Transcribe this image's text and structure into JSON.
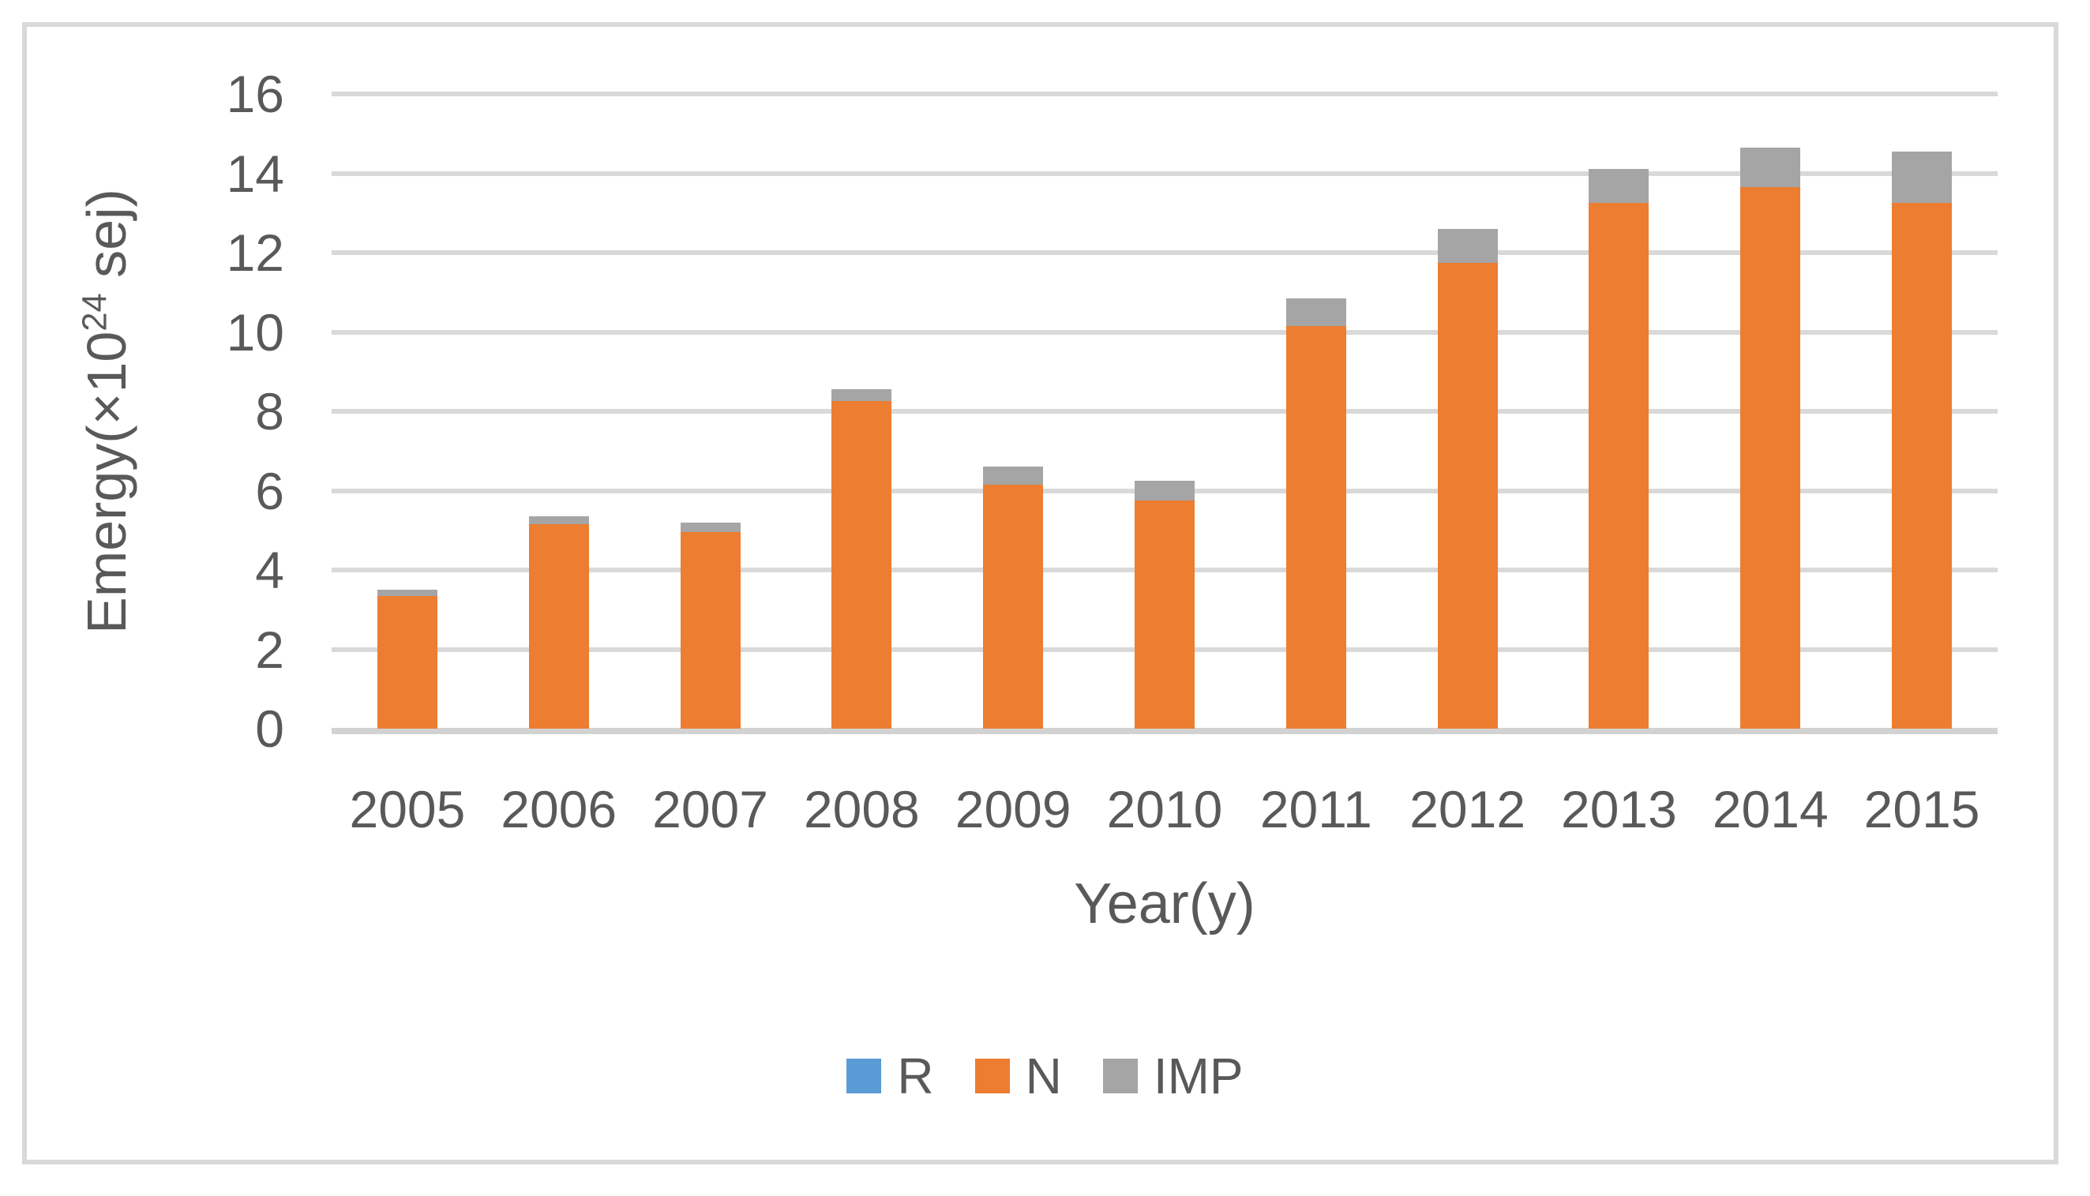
{
  "chart_data": {
    "type": "bar",
    "stacked": true,
    "title": "",
    "xlabel": "Year(y)",
    "ylabel": "Emergy(×10^24 sej)",
    "ylabel_parts": {
      "prefix": "Emergy(×10",
      "sup": "24",
      "suffix": " sej)"
    },
    "categories": [
      "2005",
      "2006",
      "2007",
      "2008",
      "2009",
      "2010",
      "2011",
      "2012",
      "2013",
      "2014",
      "2015"
    ],
    "series": [
      {
        "name": "R",
        "color": "#5B9BD5",
        "values": [
          0,
          0,
          0,
          0,
          0,
          0,
          0,
          0,
          0,
          0,
          0
        ]
      },
      {
        "name": "N",
        "color": "#ED7D31",
        "values": [
          3.35,
          5.15,
          4.95,
          8.25,
          6.15,
          5.75,
          10.15,
          11.75,
          13.25,
          13.65,
          13.25
        ]
      },
      {
        "name": "IMP",
        "color": "#A5A5A5",
        "values": [
          0.15,
          0.2,
          0.25,
          0.3,
          0.45,
          0.5,
          0.7,
          0.85,
          0.85,
          1.0,
          1.3
        ]
      }
    ],
    "stack_totals": [
      3.5,
      5.35,
      5.2,
      8.55,
      6.6,
      6.25,
      10.85,
      12.6,
      14.1,
      14.65,
      14.55
    ],
    "ylim": [
      0,
      16
    ],
    "ytick_step": 2,
    "ytick_labels": [
      "0",
      "2",
      "4",
      "6",
      "8",
      "10",
      "12",
      "14",
      "16"
    ],
    "grid": true,
    "legend_position": "bottom",
    "colors": {
      "gridline": "#D9D9D9",
      "axis_line": "#D2D2D2",
      "text": "#595959",
      "background": "#FFFFFF",
      "frame_border": "#D9D9D9"
    }
  }
}
